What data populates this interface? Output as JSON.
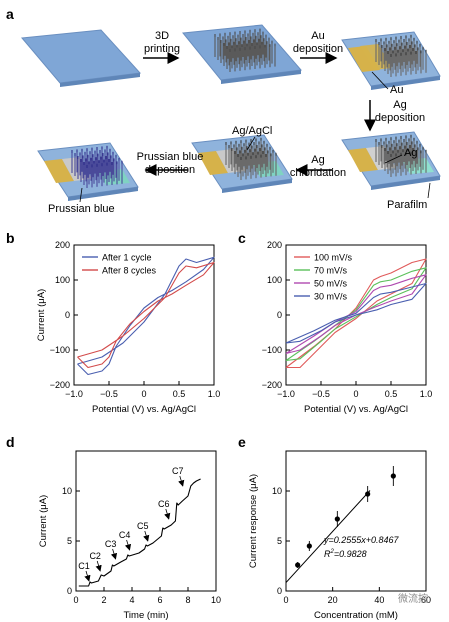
{
  "panel_a": {
    "label": "a",
    "steps": [
      {
        "id": "1",
        "caption": [
          "3D",
          "printing"
        ]
      },
      {
        "id": "2",
        "caption": [
          "Au",
          "deposition"
        ],
        "callouts": [
          "Au"
        ]
      },
      {
        "id": "3",
        "caption": [
          "Ag",
          "deposition"
        ],
        "callouts": [
          "Ag",
          "Parafilm"
        ]
      },
      {
        "id": "4",
        "caption": [
          "Ag",
          "chloridation"
        ],
        "callouts": [
          "Ag/AgCl"
        ]
      },
      {
        "id": "5",
        "caption": [
          "Prussian blue",
          "deposition"
        ],
        "callouts": [
          "Prussian blue"
        ]
      }
    ],
    "colors": {
      "substrate": "#8fb3dc",
      "au": "#d6b24a",
      "ag": "#c9c9c9",
      "prussian": "#3f3f9b",
      "agcl": "#7fd3c2"
    }
  },
  "chart_data": [
    {
      "panel": "b",
      "type": "line",
      "xlabel": "Potential (V) vs. Ag/AgCl",
      "ylabel": "Current (μA)",
      "xlim": [
        -1.0,
        1.0
      ],
      "ylim": [
        -200,
        200
      ],
      "xticks": [
        "-1.0",
        "-0.5",
        "0",
        "0.5",
        "1.0"
      ],
      "yticks": [
        "200",
        "100",
        "0",
        "-100",
        "-200"
      ],
      "legend": "top-left",
      "grid": false,
      "series": [
        {
          "name": "After 1 cycle",
          "color": "#4a5fb0",
          "x": [
            -0.95,
            -0.6,
            -0.3,
            0,
            0.3,
            0.5,
            0.6,
            0.75,
            1.0,
            0.85,
            0.6,
            0.4,
            0.2,
            0,
            -0.2,
            -0.4,
            -0.5,
            -0.6,
            -0.8,
            -0.95
          ],
          "y": [
            -140,
            -120,
            -80,
            -20,
            60,
            140,
            160,
            150,
            165,
            130,
            95,
            70,
            50,
            20,
            -30,
            -90,
            -140,
            -160,
            -170,
            -140
          ]
        },
        {
          "name": "After 8 cycles",
          "color": "#d24a4a",
          "x": [
            -0.95,
            -0.6,
            -0.3,
            0,
            0.3,
            0.5,
            0.6,
            0.75,
            1.0,
            0.85,
            0.6,
            0.4,
            0.2,
            0,
            -0.2,
            -0.4,
            -0.5,
            -0.6,
            -0.8,
            -0.95
          ],
          "y": [
            -120,
            -100,
            -60,
            -10,
            50,
            120,
            140,
            135,
            150,
            115,
            85,
            60,
            40,
            10,
            -25,
            -75,
            -120,
            -140,
            -150,
            -120
          ]
        }
      ]
    },
    {
      "panel": "c",
      "type": "line",
      "xlabel": "Potential (V) vs. Ag/AgCl",
      "ylabel": "",
      "xlim": [
        -1.0,
        1.0
      ],
      "ylim": [
        -200,
        200
      ],
      "xticks": [
        "-1.0",
        "-0.5",
        "0",
        "0.5",
        "1.0"
      ],
      "yticks": [
        "200",
        "100",
        "0",
        "-100",
        "-200"
      ],
      "legend": "top-left",
      "grid": false,
      "series": [
        {
          "name": "100 mV/s",
          "color": "#e05a5a",
          "x": [
            -1.0,
            -0.6,
            -0.3,
            0,
            0.25,
            0.35,
            0.5,
            0.8,
            1.0,
            0.8,
            0.5,
            0.3,
            0,
            -0.3,
            -0.5,
            -0.8,
            -1.0
          ],
          "y": [
            -150,
            -90,
            -40,
            20,
            100,
            110,
            120,
            150,
            160,
            90,
            60,
            40,
            -10,
            -50,
            -90,
            -150,
            -150
          ]
        },
        {
          "name": "70 mV/s",
          "color": "#5ac05a",
          "x": [
            -1.0,
            -0.6,
            -0.3,
            0,
            0.25,
            0.35,
            0.5,
            0.8,
            1.0,
            0.8,
            0.5,
            0.3,
            0,
            -0.3,
            -0.5,
            -0.8,
            -1.0
          ],
          "y": [
            -130,
            -75,
            -30,
            15,
            85,
            95,
            100,
            125,
            135,
            75,
            50,
            30,
            -5,
            -40,
            -75,
            -125,
            -130
          ]
        },
        {
          "name": "50 mV/s",
          "color": "#b04ab0",
          "x": [
            -1.0,
            -0.6,
            -0.3,
            0,
            0.25,
            0.35,
            0.5,
            0.8,
            1.0,
            0.8,
            0.5,
            0.3,
            0,
            -0.3,
            -0.5,
            -0.8,
            -1.0
          ],
          "y": [
            -110,
            -60,
            -20,
            10,
            70,
            80,
            85,
            105,
            115,
            60,
            40,
            25,
            0,
            -30,
            -60,
            -100,
            -110
          ]
        },
        {
          "name": "30 mV/s",
          "color": "#4a5fb0",
          "x": [
            -1.0,
            -0.6,
            -0.3,
            0,
            0.25,
            0.35,
            0.5,
            0.8,
            1.0,
            0.8,
            0.5,
            0.3,
            0,
            -0.3,
            -0.5,
            -0.8,
            -1.0
          ],
          "y": [
            -80,
            -45,
            -15,
            5,
            50,
            60,
            65,
            80,
            90,
            45,
            30,
            15,
            0,
            -20,
            -45,
            -75,
            -80
          ]
        }
      ]
    },
    {
      "panel": "d",
      "type": "line",
      "xlabel": "Time (min)",
      "ylabel": "Current (μA)",
      "xlim": [
        0,
        10
      ],
      "ylim": [
        0,
        14
      ],
      "xticks": [
        "0",
        "2",
        "4",
        "6",
        "8",
        "10"
      ],
      "yticks": [
        "0",
        "5",
        "10"
      ],
      "annotations": [
        "C1",
        "C2",
        "C3",
        "C4",
        "C5",
        "C6",
        "C7"
      ],
      "annotation_points": [
        [
          1.0,
          0.8
        ],
        [
          1.8,
          1.8
        ],
        [
          2.9,
          3.0
        ],
        [
          3.9,
          3.9
        ],
        [
          5.2,
          4.8
        ],
        [
          6.7,
          7.0
        ],
        [
          7.7,
          10.3
        ]
      ],
      "series": [
        {
          "name": "",
          "color": "#000000",
          "x": [
            0.2,
            0.9,
            1.0,
            1.1,
            1.6,
            1.8,
            2.0,
            2.5,
            2.6,
            2.7,
            3.2,
            3.6,
            3.7,
            3.8,
            4.5,
            4.9,
            5.0,
            5.1,
            5.5,
            6.1,
            6.2,
            6.3,
            6.8,
            7.1,
            7.2,
            7.3,
            7.6,
            8.0,
            8.2,
            8.4,
            8.6,
            8.9
          ],
          "y": [
            0.5,
            0.5,
            0.9,
            0.8,
            1.0,
            1.6,
            1.5,
            2.0,
            2.6,
            2.5,
            2.9,
            3.2,
            3.6,
            3.5,
            3.8,
            4.2,
            4.6,
            4.5,
            4.8,
            5.5,
            6.3,
            6.2,
            6.6,
            7.0,
            8.8,
            8.6,
            9.0,
            9.5,
            10.5,
            10.8,
            11.0,
            11.2
          ]
        }
      ]
    },
    {
      "panel": "e",
      "type": "scatter",
      "xlabel": "Concentration (mM)",
      "ylabel": "Current response (μA)",
      "xlim": [
        0,
        60
      ],
      "ylim": [
        0,
        14
      ],
      "xticks": [
        "0",
        "20",
        "40",
        "60"
      ],
      "yticks": [
        "0",
        "5",
        "10"
      ],
      "equation": "y=0.2555x+0.8467",
      "r2_label": "R",
      "r2_value": "=0.9828",
      "series": [
        {
          "name": "",
          "color": "#000000",
          "x": [
            5,
            10,
            22,
            35,
            46
          ],
          "y": [
            2.6,
            4.5,
            7.2,
            9.7,
            11.5
          ],
          "err": [
            0.3,
            0.5,
            0.8,
            0.8,
            1.0
          ]
        }
      ],
      "fit": {
        "x": [
          0,
          36
        ],
        "y": [
          0.8467,
          10.05
        ]
      }
    }
  ],
  "panel_labels": {
    "b": "b",
    "c": "c",
    "d": "d",
    "e": "e"
  },
  "watermark": "微流控"
}
